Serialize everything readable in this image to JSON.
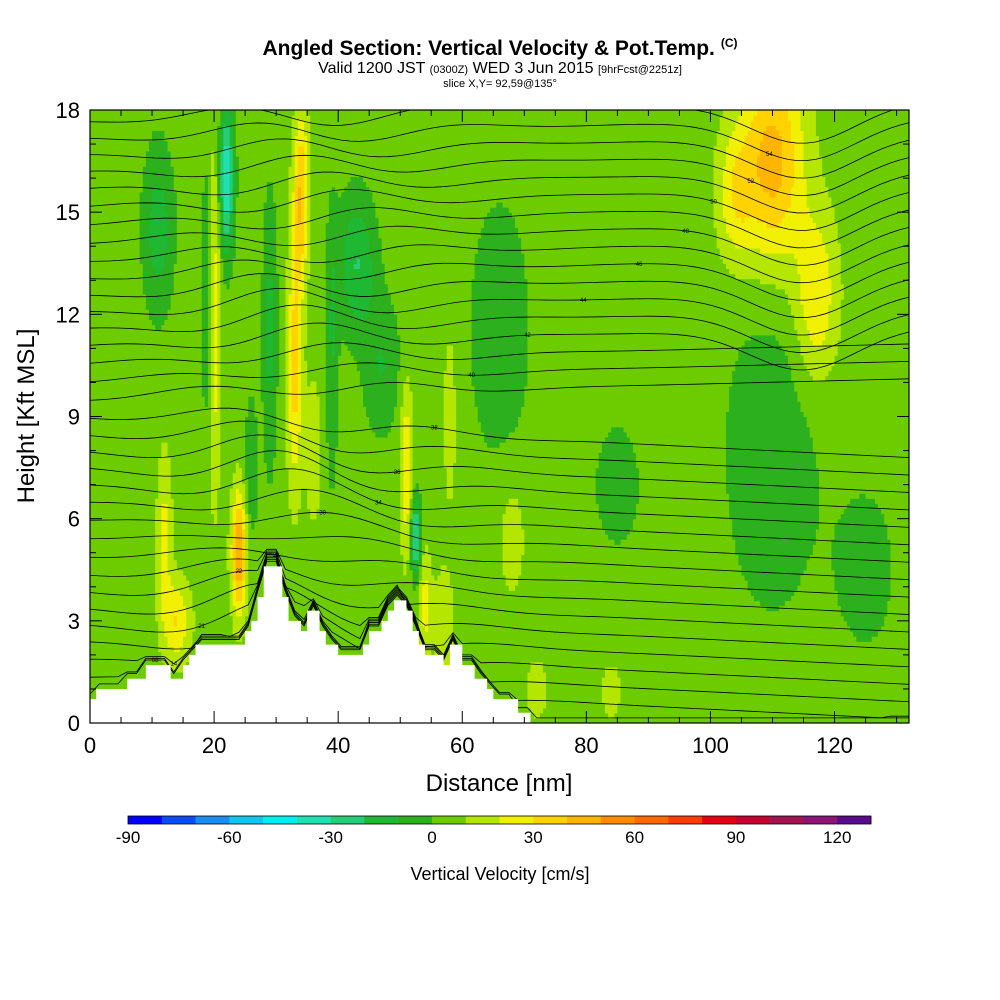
{
  "header": {
    "title": "Angled Section: Vertical Velocity & Pot.Temp.",
    "title_mark": "(C)",
    "valid_prefix": "Valid 1200 JST",
    "valid_utc": "(0300Z)",
    "valid_date": "WED 3 Jun 2015",
    "forecast": "[9hrFcst@2251z]",
    "slice": "slice X,Y= 92,59@135°"
  },
  "colorbar": {
    "label": "Vertical Velocity [cm/s]",
    "ticks": [
      "-90",
      "-60",
      "-30",
      "0",
      "30",
      "60",
      "90",
      "120"
    ],
    "tick_values": [
      -90,
      -60,
      -30,
      0,
      30,
      60,
      90,
      120
    ],
    "min": -90,
    "step": 10,
    "colors": [
      "#0000ff",
      "#0a4cf5",
      "#1a8ef0",
      "#12c4f0",
      "#00f0f0",
      "#1ee0b0",
      "#26cc78",
      "#1fb832",
      "#2cb01e",
      "#6ccc00",
      "#b4e600",
      "#f0f000",
      "#ffd200",
      "#ffb400",
      "#ff8c00",
      "#ff6a00",
      "#ff3c00",
      "#e60014",
      "#c80032",
      "#a01450",
      "#8c1478",
      "#5a0a8c"
    ]
  },
  "chart_data": {
    "type": "heatmap",
    "title": "Angled Section: Vertical Velocity & Pot.Temp.",
    "xlabel": "Distance [nm]",
    "ylabel": "Height [Kft MSL]",
    "xlim": [
      0,
      132
    ],
    "ylim": [
      0,
      18
    ],
    "x_ticks": [
      "0",
      "20",
      "40",
      "60",
      "80",
      "100",
      "120"
    ],
    "x_tick_values": [
      0,
      20,
      40,
      60,
      80,
      100,
      120
    ],
    "y_ticks": [
      "0",
      "3",
      "6",
      "9",
      "12",
      "15",
      "18"
    ],
    "y_tick_values": [
      0,
      3,
      6,
      9,
      12,
      15,
      18
    ],
    "background_vv": 5,
    "vv_features": [
      {
        "x": 22,
        "y": 16.0,
        "sx": 1.2,
        "sy": 2.2,
        "v": -45
      },
      {
        "x": 19,
        "y": 12.5,
        "sx": 1.0,
        "sy": 4.0,
        "v": -18
      },
      {
        "x": 11,
        "y": 14.5,
        "sx": 2.5,
        "sy": 2.5,
        "v": -20
      },
      {
        "x": 14,
        "y": 3.0,
        "sx": 2.2,
        "sy": 1.2,
        "v": 25
      },
      {
        "x": 12,
        "y": 5.5,
        "sx": 1.2,
        "sy": 2.5,
        "v": 18
      },
      {
        "x": 24,
        "y": 5.0,
        "sx": 1.2,
        "sy": 1.8,
        "v": 45
      },
      {
        "x": 20,
        "y": 12.0,
        "sx": 1.0,
        "sy": 5.0,
        "v": 25
      },
      {
        "x": 26,
        "y": 7.5,
        "sx": 1.0,
        "sy": 2.0,
        "v": -15
      },
      {
        "x": 34,
        "y": 15.5,
        "sx": 1.2,
        "sy": 2.5,
        "v": 35
      },
      {
        "x": 33,
        "y": 10.5,
        "sx": 1.2,
        "sy": 3.5,
        "v": 30
      },
      {
        "x": 36,
        "y": 8.0,
        "sx": 1.2,
        "sy": 2.0,
        "v": 15
      },
      {
        "x": 29,
        "y": 11.5,
        "sx": 1.2,
        "sy": 4.0,
        "v": -18
      },
      {
        "x": 39,
        "y": 11.0,
        "sx": 1.0,
        "sy": 4.0,
        "v": -15
      },
      {
        "x": 43,
        "y": 13.5,
        "sx": 3.0,
        "sy": 2.0,
        "v": -25
      },
      {
        "x": 47,
        "y": 10.5,
        "sx": 3.0,
        "sy": 2.0,
        "v": -15
      },
      {
        "x": 51,
        "y": 7.5,
        "sx": 1.0,
        "sy": 2.5,
        "v": 25
      },
      {
        "x": 52.5,
        "y": 5.5,
        "sx": 0.8,
        "sy": 1.2,
        "v": -40
      },
      {
        "x": 54,
        "y": 3.5,
        "sx": 1.0,
        "sy": 1.5,
        "v": 20
      },
      {
        "x": 58,
        "y": 9.0,
        "sx": 1.2,
        "sy": 3.0,
        "v": 10
      },
      {
        "x": 57,
        "y": 3.0,
        "sx": 1.5,
        "sy": 1.5,
        "v": 15
      },
      {
        "x": 66,
        "y": 11.5,
        "sx": 5.0,
        "sy": 4.0,
        "v": -12
      },
      {
        "x": 68,
        "y": 5.5,
        "sx": 2.5,
        "sy": 2.0,
        "v": 10
      },
      {
        "x": 85,
        "y": 7.0,
        "sx": 8.0,
        "sy": 4.0,
        "v": -6
      },
      {
        "x": 110,
        "y": 8.0,
        "sx": 8.0,
        "sy": 5.0,
        "v": -12
      },
      {
        "x": 125,
        "y": 4.5,
        "sx": 5.0,
        "sy": 2.5,
        "v": -10
      },
      {
        "x": 110,
        "y": 16.5,
        "sx": 5.0,
        "sy": 3.0,
        "v": 40
      },
      {
        "x": 117,
        "y": 12.5,
        "sx": 3.5,
        "sy": 2.5,
        "v": 25
      },
      {
        "x": 104,
        "y": 15.5,
        "sx": 3.0,
        "sy": 2.0,
        "v": 20
      },
      {
        "x": 72,
        "y": 1.0,
        "sx": 2.0,
        "sy": 1.0,
        "v": 10
      },
      {
        "x": 84,
        "y": 1.0,
        "sx": 2.0,
        "sy": 1.0,
        "v": 10
      }
    ],
    "terrain": [
      [
        0,
        0.7
      ],
      [
        1,
        0.7
      ],
      [
        1,
        1.0
      ],
      [
        6,
        1.0
      ],
      [
        6,
        1.3
      ],
      [
        9,
        1.3
      ],
      [
        9,
        1.7
      ],
      [
        13,
        1.7
      ],
      [
        13,
        1.3
      ],
      [
        15,
        1.3
      ],
      [
        15,
        1.7
      ],
      [
        16,
        1.7
      ],
      [
        16,
        2.0
      ],
      [
        17,
        2.0
      ],
      [
        17,
        2.3
      ],
      [
        25,
        2.3
      ],
      [
        25,
        2.7
      ],
      [
        26,
        2.7
      ],
      [
        26,
        3.0
      ],
      [
        27,
        3.0
      ],
      [
        27,
        3.7
      ],
      [
        28,
        3.7
      ],
      [
        28,
        4.6
      ],
      [
        31,
        4.6
      ],
      [
        31,
        3.7
      ],
      [
        32,
        3.7
      ],
      [
        32,
        3.0
      ],
      [
        34,
        3.0
      ],
      [
        34,
        2.7
      ],
      [
        35,
        2.7
      ],
      [
        35,
        3.3
      ],
      [
        37,
        3.3
      ],
      [
        37,
        2.7
      ],
      [
        38,
        2.7
      ],
      [
        38,
        2.3
      ],
      [
        40,
        2.3
      ],
      [
        40,
        2.0
      ],
      [
        44,
        2.0
      ],
      [
        44,
        2.3
      ],
      [
        45,
        2.3
      ],
      [
        45,
        2.7
      ],
      [
        47,
        2.7
      ],
      [
        47,
        3.0
      ],
      [
        48,
        3.0
      ],
      [
        48,
        3.3
      ],
      [
        49,
        3.3
      ],
      [
        49,
        3.6
      ],
      [
        51,
        3.6
      ],
      [
        51,
        3.3
      ],
      [
        52,
        3.3
      ],
      [
        52,
        2.7
      ],
      [
        53,
        2.7
      ],
      [
        53,
        2.3
      ],
      [
        54,
        2.3
      ],
      [
        54,
        2.0
      ],
      [
        57,
        2.0
      ],
      [
        57,
        1.7
      ],
      [
        58,
        1.7
      ],
      [
        58,
        2.3
      ],
      [
        60,
        2.3
      ],
      [
        60,
        1.7
      ],
      [
        62,
        1.7
      ],
      [
        62,
        1.3
      ],
      [
        64,
        1.3
      ],
      [
        64,
        1.0
      ],
      [
        65,
        1.0
      ],
      [
        65,
        0.7
      ],
      [
        69,
        0.7
      ],
      [
        69,
        0.3
      ],
      [
        71,
        0.3
      ],
      [
        71,
        0.0
      ]
    ],
    "isentropes": {
      "count": 34,
      "ground_start": 0.8,
      "top_end": 17.7,
      "labels": [
        "08",
        "14",
        "21",
        "22",
        "26",
        "30",
        "34",
        "36",
        "38",
        "40",
        "42",
        "44",
        "46",
        "48",
        "50",
        "52",
        "54"
      ]
    }
  }
}
